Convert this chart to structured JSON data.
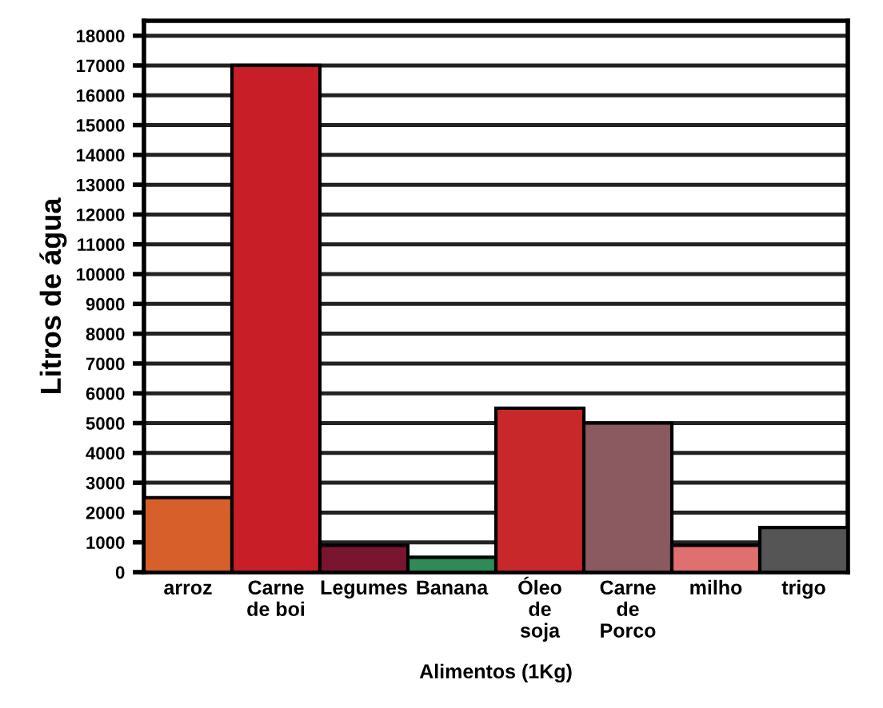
{
  "chart_data": {
    "type": "bar",
    "xlabel": "Alimentos (1Kg)",
    "ylabel": "Litros de água",
    "categories": [
      "arroz",
      "Carne\nde boi",
      "Legumes",
      "Banana",
      "Óleo\nde\nsoja",
      "Carne\nde\nPorco",
      "milho",
      "trigo"
    ],
    "values": [
      2500,
      17000,
      900,
      500,
      5500,
      5000,
      900,
      1500
    ],
    "colors": [
      "#d65f2a",
      "#c81e28",
      "#7a1530",
      "#2e8b57",
      "#c8282a",
      "#8b5a60",
      "#e07070",
      "#555555"
    ],
    "ylim": [
      0,
      18500
    ],
    "yticks": [
      0,
      1000,
      2000,
      3000,
      4000,
      5000,
      6000,
      7000,
      8000,
      9000,
      10000,
      11000,
      12000,
      13000,
      14000,
      15000,
      16000,
      17000,
      18000
    ],
    "grid": "y",
    "legend": false
  }
}
